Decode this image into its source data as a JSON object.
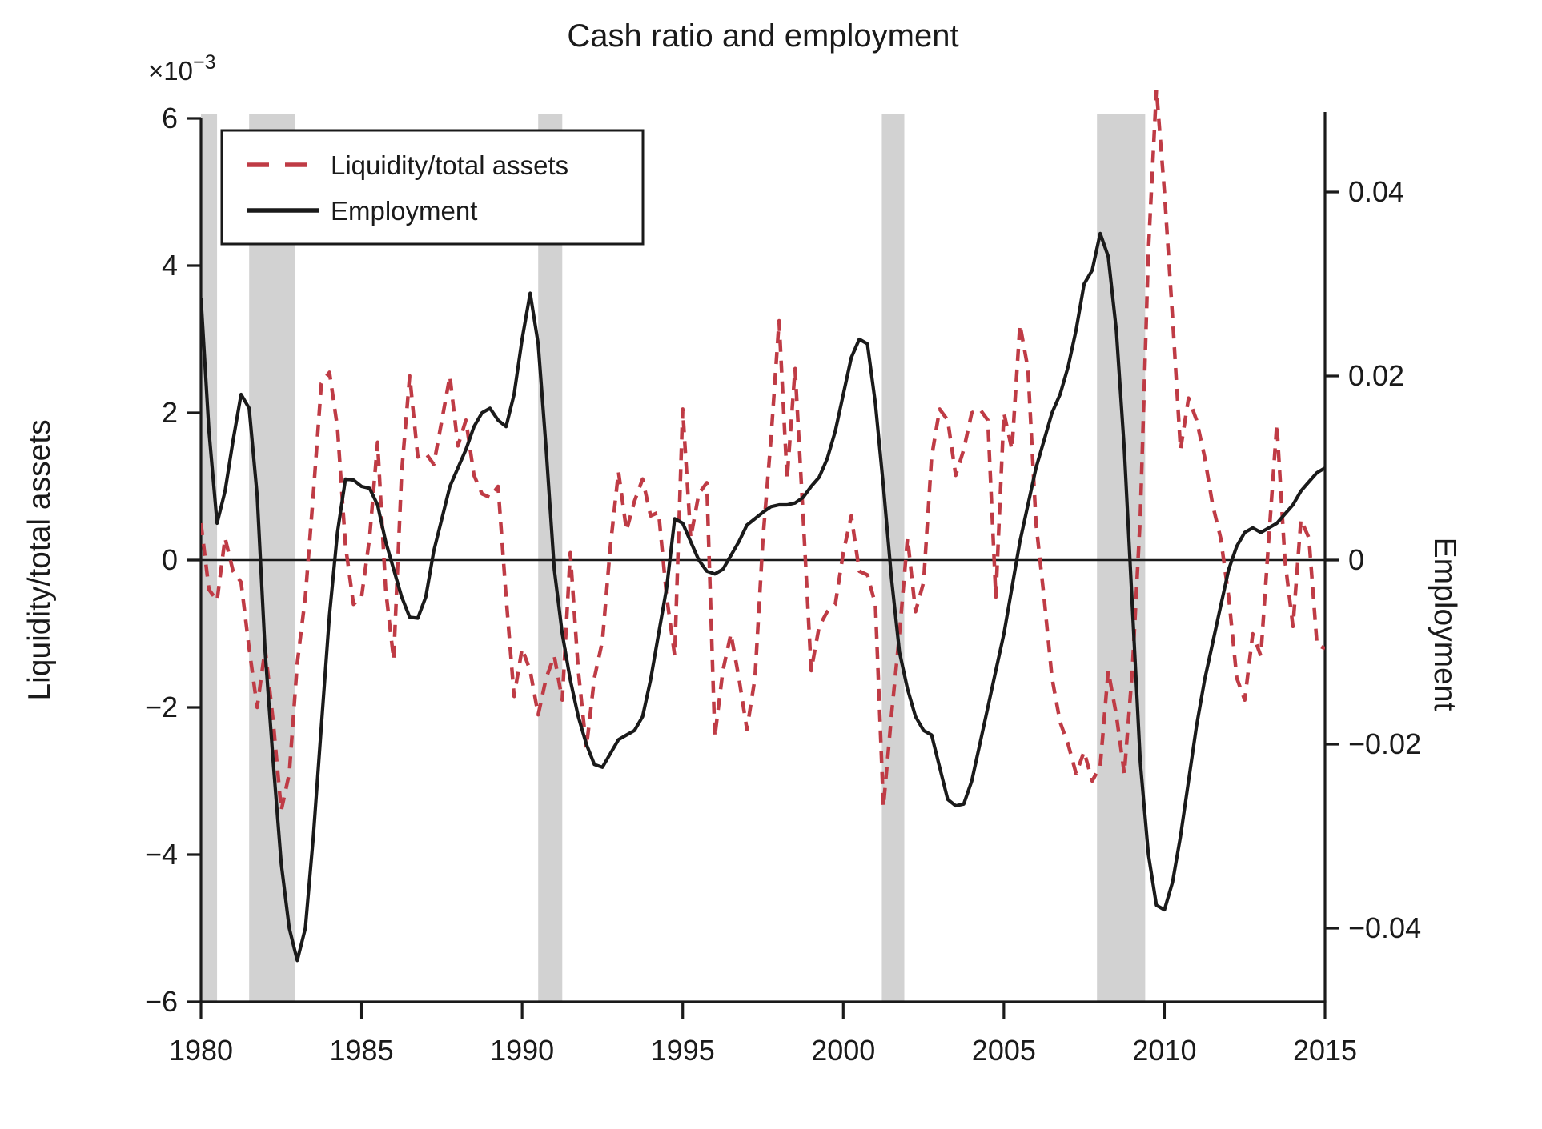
{
  "title": "Cash ratio and employment",
  "left_axis_title": "Liquidity/total assets",
  "right_axis_title": "Employment",
  "offset_label_base": "×10",
  "offset_label_exp": "−3",
  "legend": {
    "items": [
      {
        "label": "Liquidity/total assets",
        "style": "dashed",
        "color": "#bf3b45"
      },
      {
        "label": "Employment",
        "style": "solid",
        "color": "#1a1a1a"
      }
    ]
  },
  "chart_data": {
    "type": "line",
    "title": "Cash ratio and employment",
    "xlabel": "",
    "ylabel_left": "Liquidity/total assets",
    "ylabel_right": "Employment",
    "x_start": 1980.0,
    "x_step": 0.25,
    "x_range": [
      1980,
      2015
    ],
    "y_left_range_e3": [
      -6,
      6
    ],
    "y_right_range": [
      -0.048,
      0.048
    ],
    "grid": false,
    "legend_position": "upper-left",
    "background_color": "#ffffff",
    "band_color": "#d2d2d2",
    "zero_line": true,
    "recession_bands": [
      [
        1980.0,
        1980.5
      ],
      [
        1981.5,
        1982.92
      ],
      [
        1990.5,
        1991.25
      ],
      [
        2001.2,
        2001.9
      ],
      [
        2007.9,
        2009.4
      ]
    ],
    "x_ticks": [
      {
        "v": 1980,
        "label": "1980"
      },
      {
        "v": 1985,
        "label": "1985"
      },
      {
        "v": 1990,
        "label": "1990"
      },
      {
        "v": 1995,
        "label": "1995"
      },
      {
        "v": 2000,
        "label": "2000"
      },
      {
        "v": 2005,
        "label": "2005"
      },
      {
        "v": 2010,
        "label": "2010"
      },
      {
        "v": 2015,
        "label": "2015"
      }
    ],
    "y_left_ticks": [
      {
        "v": 6,
        "label": "6"
      },
      {
        "v": 4,
        "label": "4"
      },
      {
        "v": 2,
        "label": "2"
      },
      {
        "v": 0,
        "label": "0"
      },
      {
        "v": -2,
        "label": "−2"
      },
      {
        "v": -4,
        "label": "−4"
      },
      {
        "v": -6,
        "label": "−6"
      }
    ],
    "y_right_ticks": [
      {
        "v": 0.04,
        "label": "0.04"
      },
      {
        "v": 0.02,
        "label": "0.02"
      },
      {
        "v": 0,
        "label": "0"
      },
      {
        "v": -0.02,
        "label": "−0.02"
      },
      {
        "v": -0.04,
        "label": "−0.04"
      }
    ],
    "series": [
      {
        "name": "Liquidity/total assets",
        "axis": "left",
        "unit": "1e-3",
        "color": "#bf3b45",
        "dash": "15 11",
        "width": 4.5,
        "values": [
          0.5,
          -0.4,
          -0.55,
          0.3,
          -0.15,
          -0.3,
          -1.2,
          -2.0,
          -1.2,
          -2.2,
          -3.4,
          -2.9,
          -1.4,
          -0.5,
          0.9,
          2.4,
          2.55,
          1.8,
          0.2,
          -0.6,
          -0.5,
          0.3,
          1.6,
          -0.4,
          -1.35,
          1.2,
          2.5,
          1.4,
          1.45,
          1.3,
          1.9,
          2.5,
          1.55,
          1.9,
          1.15,
          0.9,
          0.85,
          1.0,
          -0.5,
          -1.85,
          -1.2,
          -1.5,
          -2.1,
          -1.6,
          -1.3,
          -1.9,
          0.1,
          -1.5,
          -2.55,
          -1.6,
          -1.1,
          0.2,
          1.2,
          0.4,
          0.8,
          1.1,
          0.6,
          0.65,
          -0.5,
          -1.3,
          2.05,
          0.3,
          0.9,
          1.05,
          -2.4,
          -1.5,
          -1.0,
          -1.6,
          -2.3,
          -1.6,
          0.3,
          1.65,
          3.25,
          1.1,
          2.6,
          0.6,
          -1.5,
          -0.9,
          -0.7,
          -0.6,
          0.1,
          0.6,
          -0.15,
          -0.2,
          -0.6,
          -3.35,
          -2.1,
          -1.0,
          0.3,
          -0.7,
          -0.3,
          1.4,
          2.05,
          1.9,
          1.15,
          1.5,
          2.0,
          2.05,
          1.9,
          -0.5,
          2.0,
          1.5,
          3.2,
          2.6,
          0.5,
          -0.5,
          -1.6,
          -2.2,
          -2.5,
          -2.9,
          -2.6,
          -3.0,
          -2.8,
          -1.5,
          -2.1,
          -2.9,
          -1.5,
          0.6,
          4.2,
          6.4,
          5.0,
          3.3,
          1.5,
          2.2,
          1.9,
          1.4,
          0.75,
          0.3,
          -0.5,
          -1.6,
          -1.9,
          -1.0,
          -1.3,
          0.3,
          1.85,
          0.0,
          -0.9,
          0.55,
          0.3,
          -1.15,
          -1.2
        ]
      },
      {
        "name": "Employment",
        "axis": "right",
        "unit": "1",
        "color": "#1a1a1a",
        "dash": "",
        "width": 4.2,
        "values": [
          0.0285,
          0.014,
          0.004,
          0.0075,
          0.013,
          0.018,
          0.0165,
          0.007,
          -0.01,
          -0.022,
          -0.033,
          -0.04,
          -0.0435,
          -0.04,
          -0.03,
          -0.018,
          -0.006,
          0.003,
          0.0088,
          0.0087,
          0.008,
          0.0078,
          0.006,
          0.002,
          -0.001,
          -0.004,
          -0.0062,
          -0.0063,
          -0.004,
          0.001,
          0.0045,
          0.008,
          0.01,
          0.012,
          0.0145,
          0.016,
          0.0165,
          0.0152,
          0.0145,
          0.018,
          0.024,
          0.029,
          0.0235,
          0.012,
          -0.001,
          -0.008,
          -0.013,
          -0.017,
          -0.02,
          -0.0222,
          -0.0225,
          -0.021,
          -0.0195,
          -0.019,
          -0.0185,
          -0.017,
          -0.013,
          -0.008,
          -0.003,
          0.0045,
          0.004,
          0.002,
          0.0,
          -0.0012,
          -0.0015,
          -0.001,
          0.0005,
          0.002,
          0.0038,
          0.0045,
          0.0052,
          0.0058,
          0.006,
          0.006,
          0.0062,
          0.0068,
          0.008,
          0.009,
          0.011,
          0.014,
          0.018,
          0.022,
          0.024,
          0.0235,
          0.017,
          0.008,
          -0.002,
          -0.01,
          -0.014,
          -0.017,
          -0.0185,
          -0.019,
          -0.0225,
          -0.026,
          -0.0267,
          -0.0265,
          -0.024,
          -0.02,
          -0.016,
          -0.012,
          -0.008,
          -0.003,
          0.002,
          0.006,
          0.01,
          0.013,
          0.016,
          0.018,
          0.021,
          0.025,
          0.03,
          0.0315,
          0.0355,
          0.033,
          0.025,
          0.012,
          -0.005,
          -0.022,
          -0.032,
          -0.0375,
          -0.038,
          -0.035,
          -0.03,
          -0.024,
          -0.018,
          -0.013,
          -0.009,
          -0.005,
          -0.001,
          0.0015,
          0.003,
          0.0035,
          0.003,
          0.0035,
          0.004,
          0.005,
          0.006,
          0.0075,
          0.0085,
          0.0095,
          0.01
        ]
      }
    ]
  }
}
